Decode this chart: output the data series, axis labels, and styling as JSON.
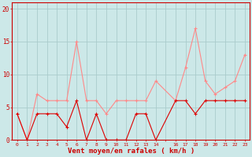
{
  "x": [
    0,
    1,
    2,
    3,
    4,
    5,
    6,
    7,
    8,
    9,
    10,
    11,
    12,
    13,
    14,
    16,
    17,
    18,
    19,
    20,
    21,
    22,
    23
  ],
  "vent_moyen": [
    4,
    0,
    4,
    4,
    4,
    2,
    6,
    0,
    4,
    0,
    0,
    0,
    4,
    4,
    0,
    6,
    6,
    4,
    6,
    6,
    6,
    6,
    6
  ],
  "rafales": [
    4,
    0,
    7,
    6,
    6,
    6,
    15,
    6,
    6,
    4,
    6,
    6,
    6,
    6,
    9,
    6,
    11,
    17,
    9,
    7,
    8,
    9,
    13
  ],
  "bg_color": "#cce8e8",
  "grid_color": "#aacccc",
  "line_color_moyen": "#dd0000",
  "line_color_rafales": "#ff8888",
  "xlabel": "Vent moyen/en rafales ( km/h )",
  "xlabel_color": "#cc0000",
  "tick_color": "#cc0000",
  "yticks": [
    0,
    5,
    10,
    15,
    20
  ],
  "xlim": [
    -0.5,
    23.5
  ],
  "ylim": [
    0,
    21
  ]
}
